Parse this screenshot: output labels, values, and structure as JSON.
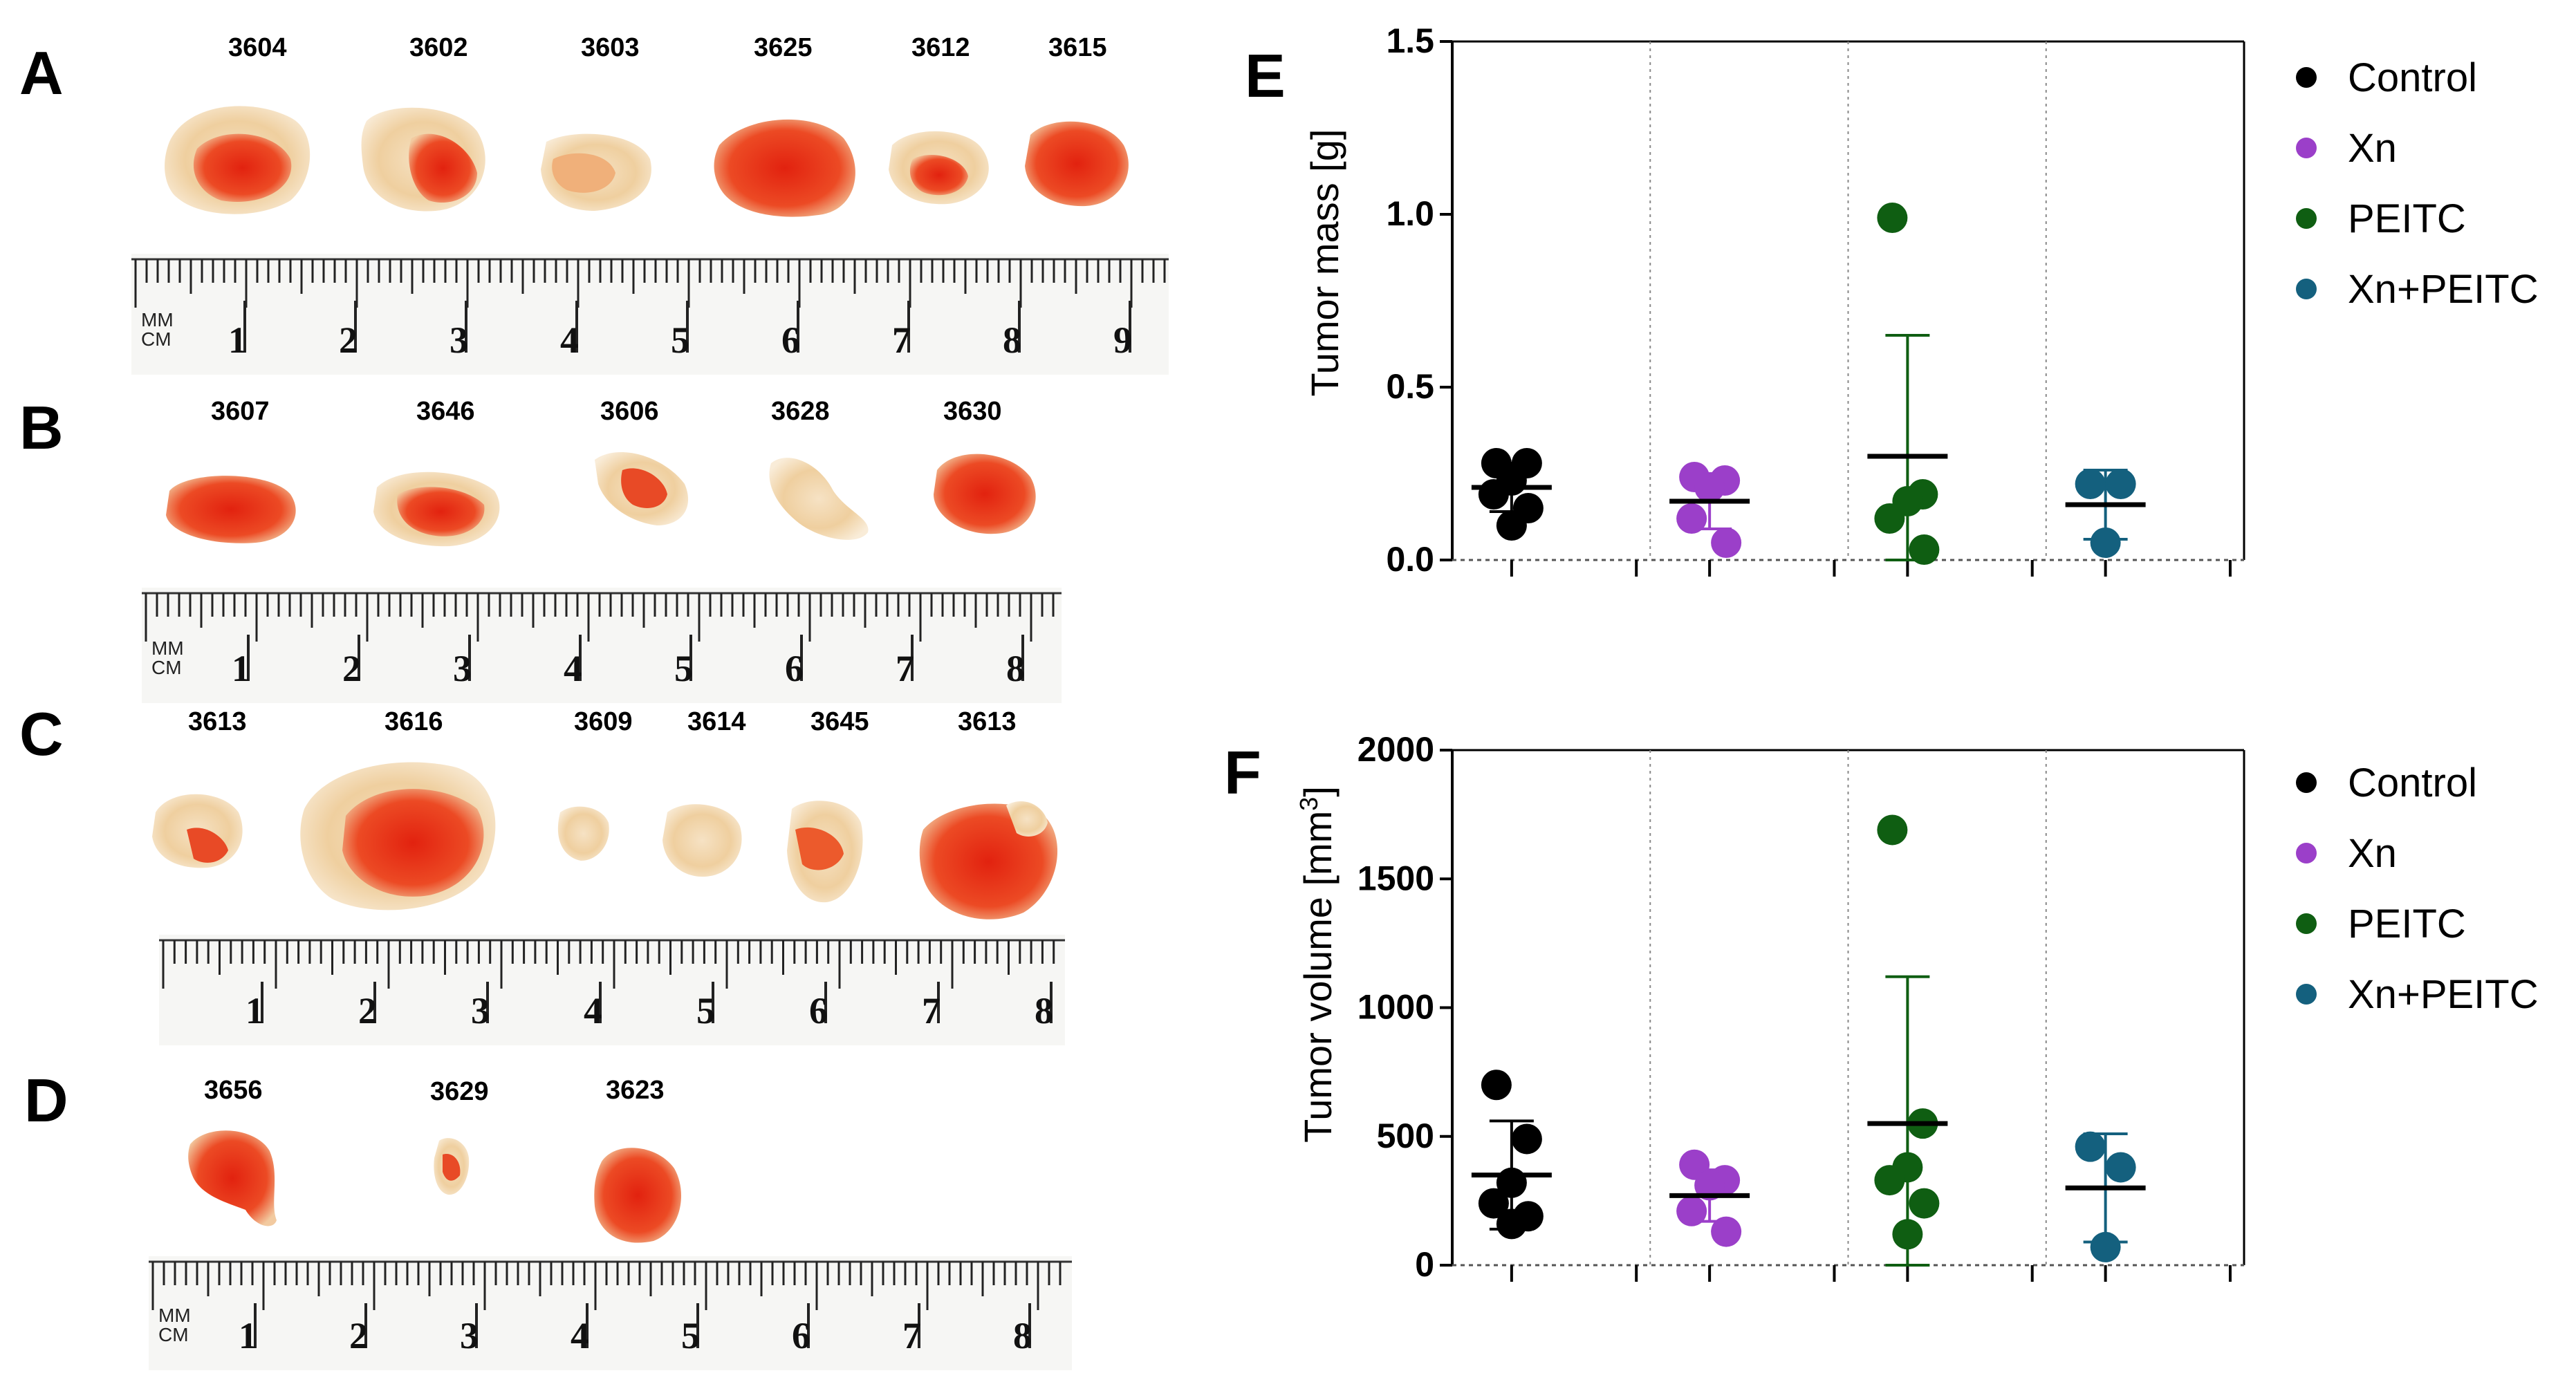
{
  "panels": {
    "A": {
      "letter": "A",
      "ids": [
        "3604",
        "3602",
        "3603",
        "3625",
        "3612",
        "3615"
      ],
      "ruler_cm": [
        "1",
        "2",
        "3",
        "4",
        "5",
        "6",
        "7",
        "8",
        "9"
      ],
      "ruler_units": [
        "MM",
        "CM"
      ]
    },
    "B": {
      "letter": "B",
      "ids": [
        "3607",
        "3646",
        "3606",
        "3628",
        "3630"
      ],
      "ruler_cm": [
        "1",
        "2",
        "3",
        "4",
        "5",
        "6",
        "7",
        "8"
      ],
      "ruler_units": [
        "MM",
        "CM"
      ]
    },
    "C": {
      "letter": "C",
      "ids": [
        "3613",
        "3616",
        "3609",
        "3614",
        "3645",
        "3613"
      ],
      "ruler_cm": [
        "1",
        "2",
        "3",
        "4",
        "5",
        "6",
        "7",
        "8"
      ]
    },
    "D": {
      "letter": "D",
      "ids": [
        "3656",
        "3629",
        "3623"
      ],
      "ruler_cm": [
        "1",
        "2",
        "3",
        "4",
        "5",
        "6",
        "7",
        "8"
      ],
      "ruler_units": [
        "MM",
        "CM"
      ]
    }
  },
  "colors": {
    "control": "#000000",
    "xn": "#9b3fc9",
    "peitc": "#0f5e12",
    "xn_peitc": "#14607e",
    "tumor": "#e8341a",
    "tumor_light": "#f3d9b5"
  },
  "chart_data": [
    {
      "panel": "E",
      "type": "scatter",
      "ylabel": "Tumor mass [g]",
      "yticks": [
        "0.0",
        "0.5",
        "1.0",
        "1.5"
      ],
      "ylim": [
        0,
        1.5
      ],
      "categories": [
        "Control",
        "Xn",
        "PEITC",
        "Xn+PEITC"
      ],
      "legend": [
        "Control",
        "Xn",
        "PEITC",
        "Xn+PEITC"
      ],
      "legend_position": "right",
      "series": [
        {
          "name": "Control",
          "color": "#000000",
          "points": [
            0.28,
            0.28,
            0.23,
            0.19,
            0.15,
            0.1
          ],
          "mean": 0.21,
          "sd": 0.07
        },
        {
          "name": "Xn",
          "color": "#9b3fc9",
          "points": [
            0.24,
            0.23,
            0.21,
            0.12,
            0.05
          ],
          "mean": 0.17,
          "sd": 0.08
        },
        {
          "name": "PEITC",
          "color": "#0f5e12",
          "points": [
            0.99,
            0.19,
            0.17,
            0.12,
            0.03
          ],
          "mean": 0.3,
          "sd": 0.35
        },
        {
          "name": "Xn+PEITC",
          "color": "#14607e",
          "points": [
            0.22,
            0.22,
            0.05
          ],
          "mean": 0.16,
          "sd": 0.1
        }
      ]
    },
    {
      "panel": "F",
      "type": "scatter",
      "ylabel": "Tumor volume [mm",
      "ylabel_sup": "3",
      "ylabel_end": "]",
      "yticks": [
        "0",
        "500",
        "1000",
        "1500",
        "2000"
      ],
      "ylim": [
        0,
        2000
      ],
      "categories": [
        "Control",
        "Xn",
        "PEITC",
        "Xn+PEITC"
      ],
      "legend": [
        "Control",
        "Xn",
        "PEITC",
        "Xn+PEITC"
      ],
      "legend_position": "right",
      "series": [
        {
          "name": "Control",
          "color": "#000000",
          "points": [
            700,
            490,
            320,
            240,
            190,
            160
          ],
          "mean": 350,
          "sd": 210
        },
        {
          "name": "Xn",
          "color": "#9b3fc9",
          "points": [
            390,
            330,
            310,
            210,
            130
          ],
          "mean": 270,
          "sd": 100
        },
        {
          "name": "PEITC",
          "color": "#0f5e12",
          "points": [
            1690,
            550,
            380,
            330,
            240,
            120
          ],
          "mean": 550,
          "sd": 570
        },
        {
          "name": "Xn+PEITC",
          "color": "#14607e",
          "points": [
            460,
            380,
            70
          ],
          "mean": 300,
          "sd": 210
        }
      ]
    }
  ]
}
